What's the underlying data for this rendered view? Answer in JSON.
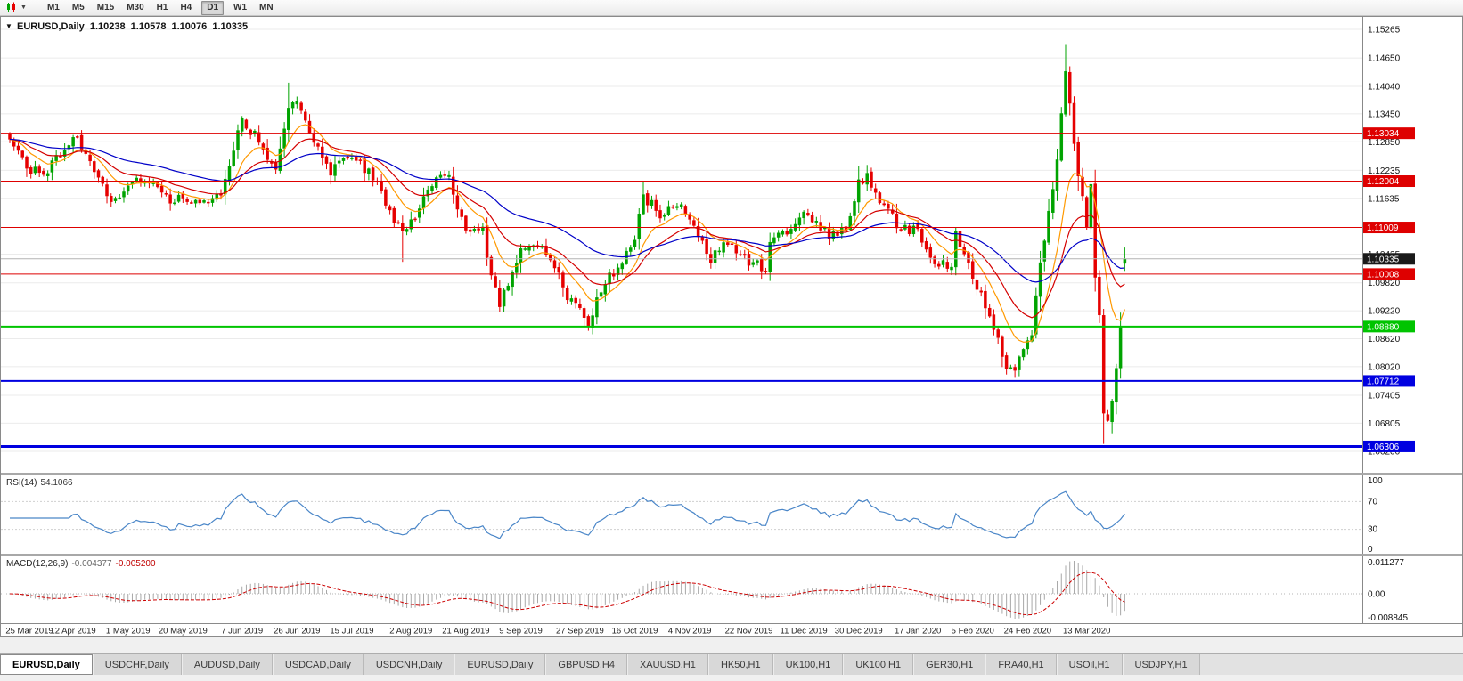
{
  "toolbar": {
    "chart_type_button": "candlestick-chart",
    "timeframes": [
      "M1",
      "M5",
      "M15",
      "M30",
      "H1",
      "H4",
      "D1",
      "W1",
      "MN"
    ],
    "active_timeframe": "D1"
  },
  "chart_header": {
    "symbol": "EURUSD,Daily",
    "open": "1.10238",
    "high": "1.10578",
    "low": "1.10076",
    "close": "1.10335"
  },
  "chart_data": {
    "type": "candlestick",
    "symbol": "EURUSD",
    "timeframe": "Daily",
    "num_candles": 265,
    "price_anchor_format": [
      "candle_index",
      "close_price"
    ],
    "price_anchors": [
      [
        0,
        1.1298
      ],
      [
        5,
        1.122
      ],
      [
        9,
        1.1225
      ],
      [
        15,
        1.13
      ],
      [
        19,
        1.1245
      ],
      [
        24,
        1.1152
      ],
      [
        28,
        1.1196
      ],
      [
        34,
        1.12
      ],
      [
        38,
        1.1155
      ],
      [
        41,
        1.1168
      ],
      [
        45,
        1.115
      ],
      [
        50,
        1.1175
      ],
      [
        55,
        1.1334
      ],
      [
        59,
        1.1285
      ],
      [
        63,
        1.1225
      ],
      [
        66,
        1.1365
      ],
      [
        68,
        1.1368
      ],
      [
        71,
        1.1305
      ],
      [
        76,
        1.122
      ],
      [
        81,
        1.126
      ],
      [
        86,
        1.1205
      ],
      [
        90,
        1.114
      ],
      [
        93,
        1.1085
      ],
      [
        95,
        1.1108
      ],
      [
        100,
        1.12
      ],
      [
        104,
        1.121
      ],
      [
        108,
        1.1086
      ],
      [
        112,
        1.11
      ],
      [
        114,
        1.099
      ],
      [
        116,
        1.094
      ],
      [
        121,
        1.1049
      ],
      [
        124,
        1.107
      ],
      [
        128,
        1.104
      ],
      [
        132,
        1.095
      ],
      [
        135,
        1.093
      ],
      [
        137,
        1.09
      ],
      [
        141,
        1.098
      ],
      [
        145,
        1.103
      ],
      [
        148,
        1.107
      ],
      [
        150,
        1.117
      ],
      [
        154,
        1.113
      ],
      [
        158,
        1.1152
      ],
      [
        161,
        1.1128
      ],
      [
        166,
        1.1034
      ],
      [
        170,
        1.1075
      ],
      [
        175,
        1.1021
      ],
      [
        179,
        1.1017
      ],
      [
        180,
        1.1078
      ],
      [
        184,
        1.1087
      ],
      [
        188,
        1.1131
      ],
      [
        190,
        1.112
      ],
      [
        194,
        1.1088
      ],
      [
        198,
        1.1098
      ],
      [
        201,
        1.1199
      ],
      [
        203,
        1.1212
      ],
      [
        206,
        1.116
      ],
      [
        210,
        1.111
      ],
      [
        215,
        1.109
      ],
      [
        219,
        1.1023
      ],
      [
        223,
        1.1016
      ],
      [
        224,
        1.1093
      ],
      [
        228,
        1.0998
      ],
      [
        232,
        1.0912
      ],
      [
        236,
        1.0795
      ],
      [
        238,
        1.0785
      ],
      [
        240,
        1.085
      ],
      [
        242,
        1.088
      ],
      [
        244,
        1.1026
      ],
      [
        246,
        1.1135
      ],
      [
        248,
        1.1237
      ],
      [
        250,
        1.1446
      ],
      [
        252,
        1.1271
      ],
      [
        255,
        1.1109
      ],
      [
        256,
        1.1183
      ],
      [
        257,
        1.0995
      ],
      [
        258,
        1.0915
      ],
      [
        259,
        1.0692
      ],
      [
        260,
        1.0694
      ],
      [
        261,
        1.0727
      ],
      [
        262,
        1.0789
      ],
      [
        263,
        1.0885
      ],
      [
        264,
        1.1033
      ]
    ],
    "key_extremes": [
      [
        66,
        "high",
        1.1412
      ],
      [
        93,
        "low",
        1.1027
      ],
      [
        116,
        "low",
        1.0926
      ],
      [
        137,
        "low",
        1.0879
      ],
      [
        238,
        "low",
        1.0778
      ],
      [
        250,
        "high",
        1.1495
      ],
      [
        259,
        "low",
        1.0636
      ]
    ],
    "last_candle": {
      "open": 1.10238,
      "high": 1.10578,
      "low": 1.10076,
      "close": 1.10335
    },
    "current_price": "1.10335",
    "price_axis_ticks": [
      "1.15265",
      "1.14650",
      "1.14040",
      "1.13450",
      "1.12850",
      "1.12235",
      "1.11635",
      "1.10435",
      "1.09820",
      "1.09220",
      "1.08620",
      "1.08020",
      "1.07405",
      "1.06805",
      "1.06200"
    ],
    "horizontal_lines": [
      {
        "price": 1.13034,
        "label": "1.13034",
        "color": "#DE0000",
        "width": 1,
        "style": "resistance"
      },
      {
        "price": 1.12004,
        "label": "1.12004",
        "color": "#DE0000",
        "width": 1,
        "style": "resistance"
      },
      {
        "price": 1.11009,
        "label": "1.11009",
        "color": "#DE0000",
        "width": 1,
        "style": "resistance"
      },
      {
        "price": 1.10008,
        "label": "1.10008",
        "color": "#DE0000",
        "width": 1,
        "style": "resistance"
      },
      {
        "price": 1.0888,
        "label": "1.08880",
        "color": "#00C400",
        "width": 2,
        "style": "support"
      },
      {
        "price": 1.07712,
        "label": "1.07712",
        "color": "#0000E0",
        "width": 2,
        "style": "support"
      },
      {
        "price": 1.06306,
        "label": "1.06306",
        "color": "#0000E0",
        "width": 3,
        "style": "support"
      }
    ],
    "date_labels": [
      {
        "index": 1,
        "text": "25 Mar 2019"
      },
      {
        "index": 15,
        "text": "12 Apr 2019"
      },
      {
        "index": 28,
        "text": "1 May 2019"
      },
      {
        "index": 41,
        "text": "20 May 2019"
      },
      {
        "index": 55,
        "text": "7 Jun 2019"
      },
      {
        "index": 68,
        "text": "26 Jun 2019"
      },
      {
        "index": 81,
        "text": "15 Jul 2019"
      },
      {
        "index": 95,
        "text": "2 Aug 2019"
      },
      {
        "index": 108,
        "text": "21 Aug 2019"
      },
      {
        "index": 121,
        "text": "9 Sep 2019"
      },
      {
        "index": 135,
        "text": "27 Sep 2019"
      },
      {
        "index": 148,
        "text": "16 Oct 2019"
      },
      {
        "index": 161,
        "text": "4 Nov 2019"
      },
      {
        "index": 175,
        "text": "22 Nov 2019"
      },
      {
        "index": 188,
        "text": "11 Dec 2019"
      },
      {
        "index": 201,
        "text": "30 Dec 2019"
      },
      {
        "index": 215,
        "text": "17 Jan 2020"
      },
      {
        "index": 228,
        "text": "5 Feb 2020"
      },
      {
        "index": 241,
        "text": "24 Feb 2020"
      },
      {
        "index": 255,
        "text": "13 Mar 2020"
      }
    ],
    "moving_averages": [
      {
        "name": "fast-ma",
        "period": 10,
        "method": "ema",
        "color": "#FF9900"
      },
      {
        "name": "mid-ma",
        "period": 21,
        "method": "ema",
        "color": "#D40000"
      },
      {
        "name": "slow-ma",
        "period": 50,
        "method": "ema",
        "color": "#0000C8"
      }
    ],
    "colors": {
      "bull": "#00A300",
      "bear": "#E60000",
      "grid": "#EBEBEB",
      "background": "#FFFFFF",
      "current_price_line": "#B4B4B4",
      "current_price_badge": "#1A1A1A",
      "axis_line": "#888888"
    },
    "rsi": {
      "label": "RSI(14)",
      "period": 14,
      "value": "54.1066",
      "axis_labels": [
        "100",
        "70",
        "30",
        "0"
      ],
      "levels": [
        70,
        30
      ],
      "color": "#4A86C8"
    },
    "macd": {
      "label": "MACD(12,26,9)",
      "fast": 12,
      "slow": 26,
      "signal": 9,
      "main_value": "-0.004377",
      "signal_value": "-0.005200",
      "axis_labels": [
        "0.011277",
        "0.00",
        "-0.008845"
      ],
      "histogram_color": "#A8A8A8",
      "signal_color": "#CC0000"
    }
  },
  "tabs": {
    "items": [
      "EURUSD,Daily",
      "USDCHF,Daily",
      "AUDUSD,Daily",
      "USDCAD,Daily",
      "USDCNH,Daily",
      "EURUSD,Daily",
      "GBPUSD,H4",
      "XAUUSD,H1",
      "HK50,H1",
      "UK100,H1",
      "UK100,H1",
      "GER30,H1",
      "FRA40,H1",
      "USOil,H1",
      "USDJPY,H1"
    ],
    "active_index": 0
  }
}
